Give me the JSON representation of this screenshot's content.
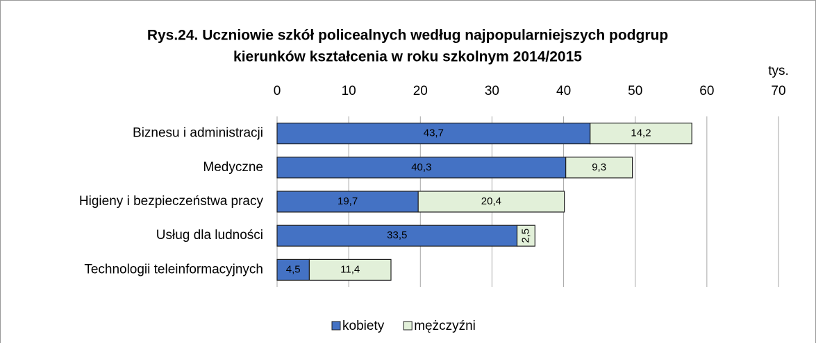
{
  "chart_data": {
    "type": "bar",
    "orientation": "horizontal",
    "stacked": true,
    "title": [
      "Rys.24. Uczniowie szkół policealnych według najpopularniejszych podgrup",
      "kierunków kształcenia w roku szkolnym 2014/2015"
    ],
    "x_label": "tys.",
    "categories": [
      "Biznesu i administracji",
      "Medyczne",
      "Higieny i bezpieczeństwa pracy",
      "Usług dla ludności",
      "Technologii teleinformacyjnych"
    ],
    "series": [
      {
        "name": "kobiety",
        "color": "#4472c4",
        "text_color": "#ffffff",
        "values": [
          43.7,
          40.3,
          19.7,
          33.5,
          4.5
        ],
        "value_labels": [
          "43,7",
          "40,3",
          "19,7",
          "33,5",
          "4,5"
        ]
      },
      {
        "name": "mężczyźni",
        "color": "#e2f0d9",
        "text_color": "#000000",
        "values": [
          14.2,
          9.3,
          20.4,
          2.5,
          11.4
        ],
        "value_labels": [
          "14,2",
          "9,3",
          "20,4",
          "2,5",
          "11,4"
        ]
      }
    ],
    "xlim": [
      0,
      70
    ],
    "xticks": [
      0,
      10,
      20,
      30,
      40,
      50,
      60,
      70
    ],
    "grid": true,
    "legend": "bottom"
  }
}
